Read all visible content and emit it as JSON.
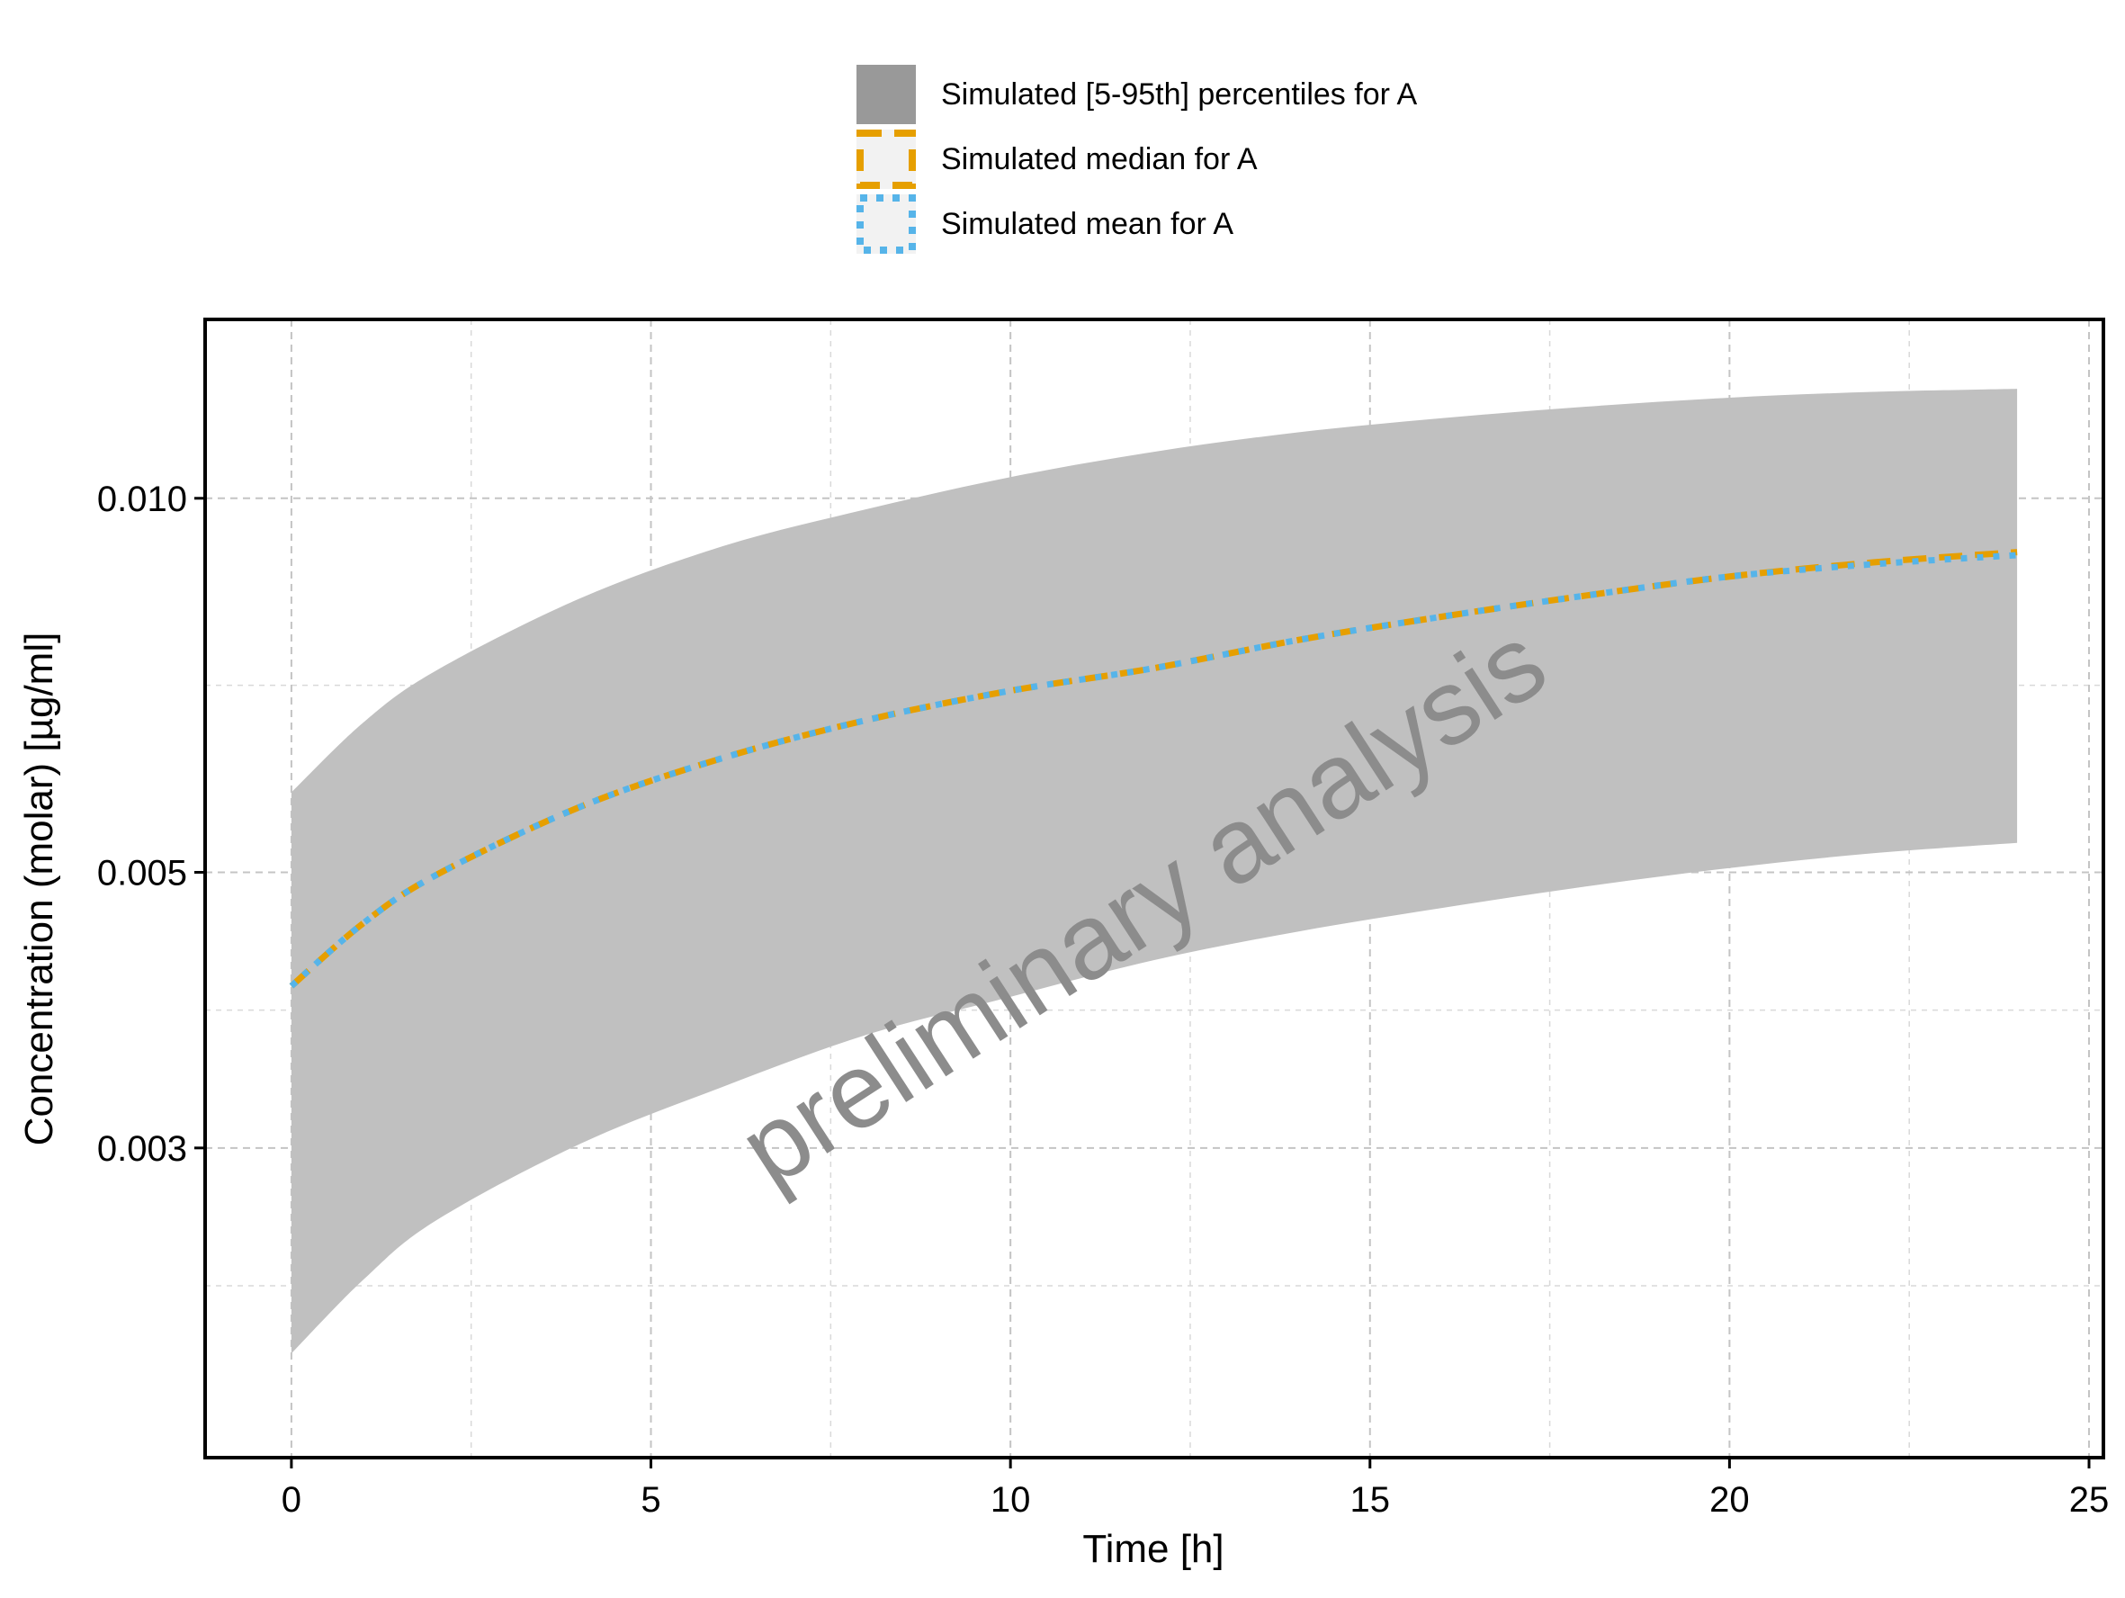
{
  "chart_data": {
    "type": "line",
    "title": "",
    "xlabel": "Time [h]",
    "ylabel": "Concentration (molar) [µg/ml]",
    "x_scale": "linear",
    "y_scale": "log",
    "xlim": [
      -1.2,
      25.2
    ],
    "ylim": [
      0.00169,
      0.01393
    ],
    "x_ticks": [
      0,
      5,
      10,
      15,
      20,
      25
    ],
    "x_tick_labels": [
      "0",
      "5",
      "10",
      "15",
      "20",
      "25"
    ],
    "y_ticks": [
      0.003,
      0.005,
      0.01
    ],
    "y_tick_labels": [
      "0.003",
      "0.005",
      "0.010"
    ],
    "grid": true,
    "legend_position": "top",
    "watermark": "preliminary analysis",
    "colors": {
      "band": "#c0c0c0",
      "band_legend": "#999999",
      "median": "#e69f00",
      "mean": "#56b4e9",
      "watermark": "#8c8c8c",
      "legend_key_bg": "#f2f2f2"
    },
    "x": [
      0,
      1,
      2,
      4,
      6,
      8,
      10,
      12,
      14,
      16,
      18,
      20,
      22,
      24
    ],
    "series": [
      {
        "name": "Simulated [5-95th] percentiles for A",
        "kind": "band",
        "lower": [
          0.00205,
          0.00235,
          0.00262,
          0.00302,
          0.00336,
          0.0037,
          0.00397,
          0.00425,
          0.00448,
          0.00468,
          0.00487,
          0.00504,
          0.00518,
          0.00528
        ],
        "upper": [
          0.0058,
          0.0066,
          0.00726,
          0.0083,
          0.00915,
          0.0098,
          0.0104,
          0.0109,
          0.0113,
          0.0116,
          0.01185,
          0.01205,
          0.01218,
          0.01225
        ]
      },
      {
        "name": "Simulated median for A",
        "kind": "line",
        "style": "dashed",
        "values": [
          0.00405,
          0.00455,
          0.00497,
          0.00564,
          0.00618,
          0.00663,
          0.007,
          0.0073,
          0.00769,
          0.00803,
          0.00835,
          0.00865,
          0.00888,
          0.00905
        ]
      },
      {
        "name": "Simulated mean for A",
        "kind": "line",
        "style": "dotted",
        "values": [
          0.00405,
          0.00455,
          0.00497,
          0.00564,
          0.00618,
          0.00663,
          0.007,
          0.0073,
          0.00769,
          0.00803,
          0.00835,
          0.00865,
          0.00885,
          0.009
        ]
      }
    ]
  }
}
